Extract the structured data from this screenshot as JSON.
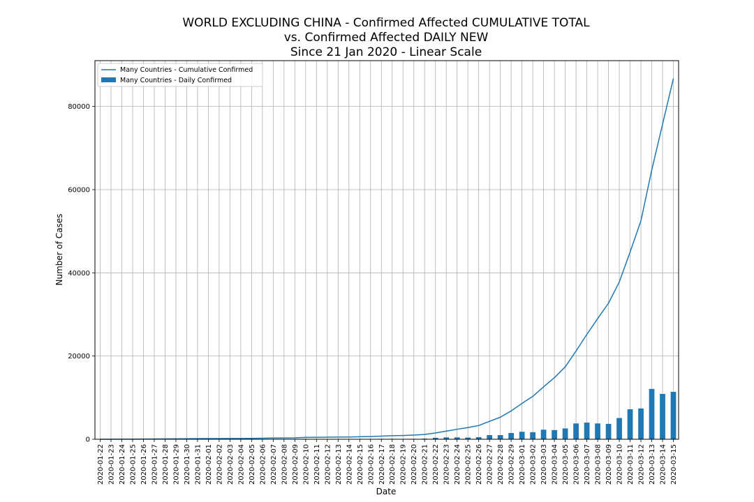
{
  "chart_data": {
    "type": "bar",
    "title_lines": [
      "WORLD EXCLUDING CHINA - Confirmed Affected CUMULATIVE TOTAL",
      "vs. Confirmed Affected DAILY NEW",
      "Since 21 Jan 2020 - Linear Scale"
    ],
    "xlabel": "Date",
    "ylabel": "Number of Cases",
    "ylim": [
      0,
      91000
    ],
    "yticks": [
      0,
      20000,
      40000,
      60000,
      80000
    ],
    "grid": true,
    "legend_position": "top-left",
    "color": "#1f77b4",
    "categories": [
      "2020-01-22",
      "2020-01-23",
      "2020-01-24",
      "2020-01-25",
      "2020-01-26",
      "2020-01-27",
      "2020-01-28",
      "2020-01-29",
      "2020-01-30",
      "2020-01-31",
      "2020-02-01",
      "2020-02-02",
      "2020-02-03",
      "2020-02-04",
      "2020-02-05",
      "2020-02-06",
      "2020-02-07",
      "2020-02-08",
      "2020-02-09",
      "2020-02-10",
      "2020-02-11",
      "2020-02-12",
      "2020-02-13",
      "2020-02-14",
      "2020-02-15",
      "2020-02-16",
      "2020-02-17",
      "2020-02-18",
      "2020-02-19",
      "2020-02-20",
      "2020-02-21",
      "2020-02-22",
      "2020-02-23",
      "2020-02-24",
      "2020-02-25",
      "2020-02-26",
      "2020-02-27",
      "2020-02-28",
      "2020-02-29",
      "2020-03-01",
      "2020-03-02",
      "2020-03-03",
      "2020-03-04",
      "2020-03-05",
      "2020-03-06",
      "2020-03-07",
      "2020-03-08",
      "2020-03-09",
      "2020-03-10",
      "2020-03-11",
      "2020-03-12",
      "2020-03-13",
      "2020-03-14",
      "2020-03-15"
    ],
    "series": [
      {
        "name": "Many Countries - Cumulative Confirmed",
        "kind": "line",
        "values": [
          6,
          8,
          15,
          20,
          35,
          55,
          75,
          100,
          125,
          155,
          160,
          170,
          180,
          190,
          215,
          260,
          300,
          320,
          340,
          450,
          470,
          500,
          520,
          540,
          600,
          650,
          750,
          850,
          900,
          1000,
          1150,
          1500,
          1950,
          2400,
          2800,
          3300,
          4300,
          5300,
          6800,
          8600,
          10300,
          12600,
          14800,
          17400,
          21200,
          25200,
          29000,
          32700,
          37800,
          45000,
          52500,
          64700,
          75700,
          86700
        ]
      },
      {
        "name": "Many Countries - Daily Confirmed",
        "kind": "bar",
        "values": [
          2,
          2,
          7,
          5,
          15,
          20,
          20,
          25,
          25,
          30,
          5,
          10,
          10,
          10,
          25,
          45,
          40,
          20,
          20,
          110,
          20,
          30,
          20,
          20,
          60,
          50,
          100,
          100,
          50,
          100,
          150,
          350,
          450,
          450,
          400,
          500,
          1000,
          1000,
          1500,
          1800,
          1700,
          2300,
          2200,
          2600,
          3800,
          4000,
          3800,
          3700,
          5100,
          7200,
          7400,
          12100,
          10900,
          11400
        ]
      }
    ]
  }
}
